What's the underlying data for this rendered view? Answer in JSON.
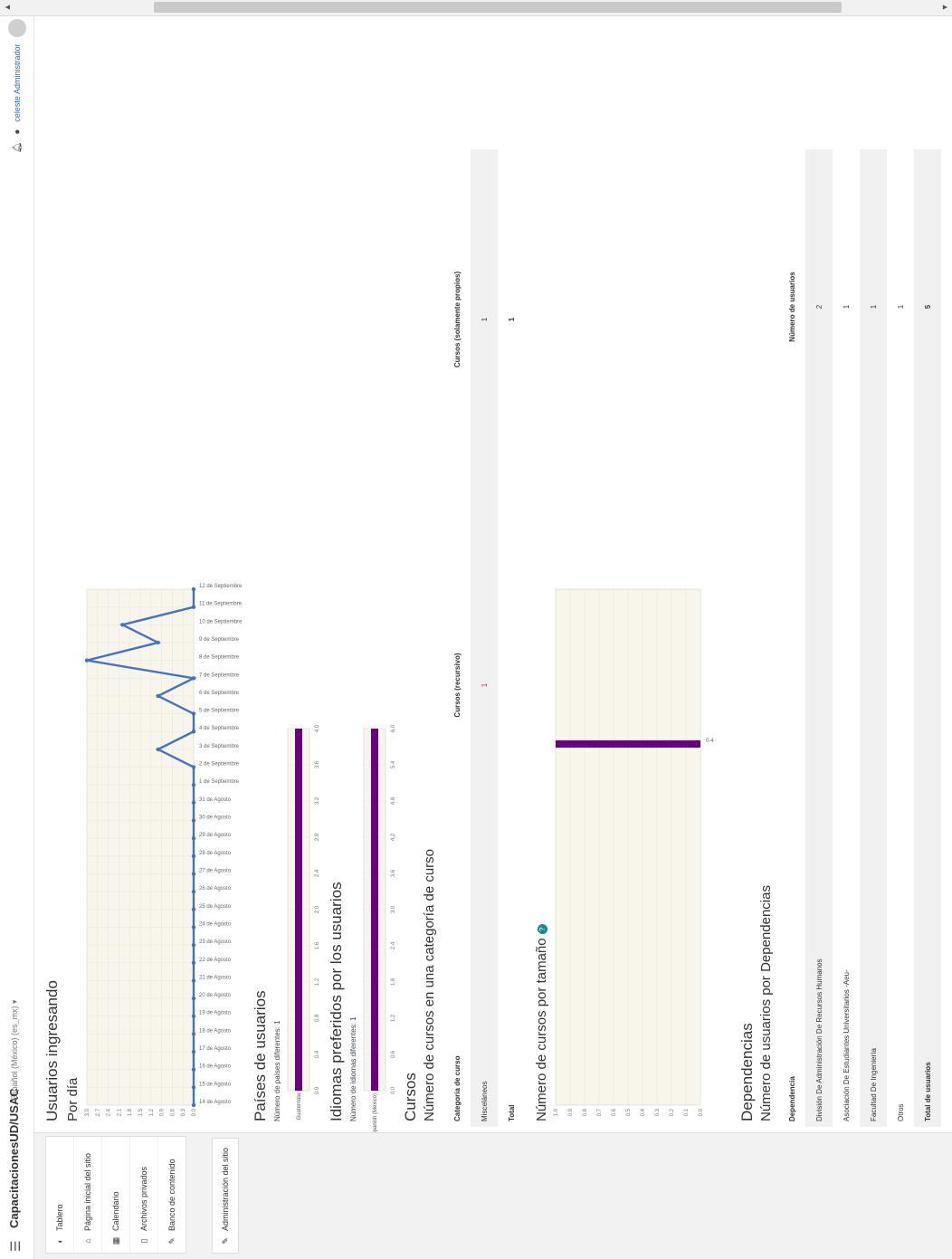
{
  "navbar": {
    "brand": "CapacitacionesUD/USAC",
    "language": "Español (México) (es_mx) ▾",
    "user": "celeste Administrador",
    "caret": "▾"
  },
  "drawer": {
    "items": [
      {
        "label": "Tablero",
        "icon": "dashboard-icon",
        "glyph": "◐"
      },
      {
        "label": "Página inicial del sitio",
        "icon": "home-icon",
        "glyph": "⌂"
      },
      {
        "label": "Calendario",
        "icon": "calendar-icon",
        "glyph": "▦"
      },
      {
        "label": "Archivos privados",
        "icon": "file-icon",
        "glyph": "▯"
      },
      {
        "label": "Banco de contenido",
        "icon": "wrench-icon",
        "glyph": "✎"
      }
    ],
    "admin": {
      "label": "Administración del sitio",
      "icon": "wrench-icon",
      "glyph": "✎"
    }
  },
  "logins": {
    "title": "Usuarios ingresando",
    "subtitle": "Por día"
  },
  "countries": {
    "title": "Países de usuarios",
    "count_label": "Número de países diferentes: 1"
  },
  "languages": {
    "title": "Idiomas preferidos por los usuarios",
    "count_label": "Número de idiomas diferentes: 1"
  },
  "courses": {
    "title": "Cursos",
    "subtitle": "Número de cursos en una categoría de curso",
    "headers": [
      "Categoría de curso",
      "Cursos (recursivo)",
      "Cursos (solamente propios)"
    ],
    "rows": [
      [
        "Misceláneos",
        "1",
        "1"
      ]
    ],
    "total": [
      "Total",
      "",
      "1"
    ],
    "size_title": "Número de cursos por tamaño"
  },
  "dependencies": {
    "title": "Dependencias",
    "subtitle": "Número de usuarios por Dependencias",
    "headers": [
      "Dependencia",
      "Número de usuarios"
    ],
    "rows": [
      [
        "División De Administración De Recursos Humanos",
        "2"
      ],
      [
        "Asociación De Estudiantes Universitarios -Aeu-",
        "1"
      ],
      [
        "Facultad De Ingeniería",
        "1"
      ],
      [
        "Otros",
        "1"
      ]
    ],
    "total": [
      "Total de usuarios",
      "5"
    ]
  },
  "chart_data": [
    {
      "type": "line",
      "title": "Por día",
      "x": [
        "14 de Agosto",
        "15 de Agosto",
        "16 de Agosto",
        "17 de Agosto",
        "18 de Agosto",
        "19 de Agosto",
        "20 de Agosto",
        "21 de Agosto",
        "22 de Agosto",
        "23 de Agosto",
        "24 de Agosto",
        "25 de Agosto",
        "26 de Agosto",
        "27 de Agosto",
        "28 de Agosto",
        "29 de Agosto",
        "30 de Agosto",
        "31 de Agosto",
        "1 de Septiembre",
        "2 de Septiembre",
        "3 de Septiembre",
        "4 de Septiembre",
        "5 de Septiembre",
        "6 de Septiembre",
        "7 de Septiembre",
        "8 de Septiembre",
        "9 de Septiembre",
        "10 de Septiembre",
        "11 de Septiembre",
        "12 de Septiembre"
      ],
      "values": [
        0,
        0,
        0,
        0,
        0,
        0,
        0,
        0,
        0,
        0,
        0,
        0,
        0,
        0,
        0,
        0,
        0,
        0,
        0,
        0,
        1,
        0,
        0,
        1,
        0,
        3,
        1,
        2,
        0,
        0
      ],
      "yticks": [
        "0.0",
        "0.3",
        "0.6",
        "0.9",
        "1.2",
        "1.5",
        "1.8",
        "2.1",
        "2.4",
        "2.7",
        "3.0"
      ],
      "ylim": [
        0,
        3
      ],
      "color": "#4472c4"
    },
    {
      "type": "bar",
      "orientation": "horizontal",
      "categories": [
        "Guatemala"
      ],
      "values": [
        4
      ],
      "xticks": [
        "0.0",
        "0.4",
        "0.8",
        "1.2",
        "1.6",
        "2.0",
        "2.4",
        "2.8",
        "3.2",
        "3.6",
        "4.0"
      ],
      "xlim": [
        0,
        4
      ],
      "color": "#6a0080"
    },
    {
      "type": "bar",
      "orientation": "horizontal",
      "categories": [
        "Spanish (Mexico)"
      ],
      "values": [
        6
      ],
      "xticks": [
        "0.0",
        "0.6",
        "1.2",
        "1.8",
        "2.4",
        "3.0",
        "3.6",
        "4.2",
        "4.8",
        "5.4",
        "6.0"
      ],
      "xlim": [
        0,
        6
      ],
      "color": "#6a0080"
    },
    {
      "type": "bar",
      "categories": [
        "0-4"
      ],
      "values": [
        1
      ],
      "yticks": [
        "0.0",
        "0.1",
        "0.2",
        "0.3",
        "0.4",
        "0.5",
        "0.6",
        "0.7",
        "0.8",
        "0.9",
        "1.0"
      ],
      "ylim": [
        0,
        1
      ],
      "color": "#6a0080"
    }
  ]
}
